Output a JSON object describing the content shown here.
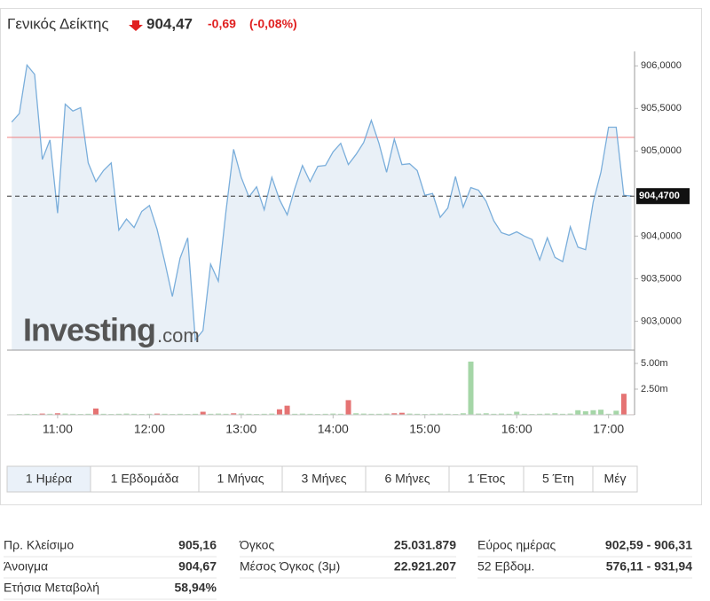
{
  "header": {
    "title": "Γενικός Δείκτης",
    "price": "904,47",
    "change": "-0,69",
    "change_pct": "(-0,08%)"
  },
  "watermark": [
    "Investing",
    ".com"
  ],
  "chart_data": [
    {
      "type": "line",
      "color": "#7aaedb",
      "fill": "#e9f0f7",
      "x": [
        630,
        635,
        640,
        645,
        650,
        655,
        660,
        665,
        670,
        675,
        680,
        685,
        690,
        695,
        700,
        705,
        710,
        715,
        720,
        725,
        730,
        735,
        740,
        745,
        750,
        755,
        760,
        765,
        770,
        775,
        780,
        785,
        790,
        795,
        800,
        805,
        810,
        815,
        820,
        825,
        830,
        835,
        840,
        845,
        850,
        855,
        860,
        865,
        870,
        875,
        880,
        885,
        890,
        895,
        900,
        905,
        910,
        915,
        920,
        925,
        930,
        935,
        940,
        945,
        950,
        955,
        960,
        965,
        970,
        975,
        980,
        985,
        990,
        995,
        1000,
        1005,
        1010,
        1015,
        1020,
        1025,
        1030,
        1035
      ],
      "values": [
        905.34,
        905.44,
        906.01,
        905.9,
        904.9,
        905.13,
        904.27,
        905.55,
        905.47,
        905.51,
        904.86,
        904.64,
        904.77,
        904.86,
        904.07,
        904.2,
        904.1,
        904.29,
        904.36,
        904.08,
        903.7,
        903.29,
        903.74,
        903.98,
        902.78,
        902.89,
        903.67,
        903.47,
        904.29,
        905.02,
        904.69,
        904.46,
        904.58,
        904.31,
        904.69,
        904.43,
        904.25,
        904.56,
        904.83,
        904.64,
        904.82,
        904.83,
        904.99,
        905.09,
        904.84,
        904.96,
        905.1,
        905.36,
        905.09,
        904.75,
        905.14,
        904.84,
        904.85,
        904.77,
        904.48,
        904.5,
        904.22,
        904.33,
        904.7,
        904.34,
        904.57,
        904.54,
        904.41,
        904.18,
        904.04,
        904.01,
        904.05,
        904.0,
        903.96,
        903.72,
        903.98,
        903.75,
        903.7,
        904.11,
        903.87,
        903.84,
        904.4,
        904.75,
        905.28,
        905.28,
        904.48,
        904.47
      ],
      "xlim": [
        627,
        1037
      ],
      "ylim": [
        902.66,
        906.17
      ],
      "yticks": [
        {
          "value": 903,
          "label": "903,0000"
        },
        {
          "value": 903.5,
          "label": "903,5000"
        },
        {
          "value": 904,
          "label": "904,0000"
        },
        {
          "value": 905,
          "label": "905,0000"
        },
        {
          "value": 905.5,
          "label": "905,5000"
        },
        {
          "value": 906,
          "label": "906,0000"
        }
      ],
      "previous_close": 905.16,
      "previous_close_color": "#f08080",
      "last_price": {
        "value": 904.47,
        "label": "904,4700"
      }
    },
    {
      "type": "bar",
      "x": [
        630,
        635,
        640,
        645,
        650,
        655,
        660,
        665,
        670,
        675,
        680,
        685,
        690,
        695,
        700,
        705,
        710,
        715,
        720,
        725,
        730,
        735,
        740,
        745,
        750,
        755,
        760,
        765,
        770,
        775,
        780,
        785,
        790,
        795,
        800,
        805,
        810,
        815,
        820,
        825,
        830,
        835,
        840,
        845,
        850,
        855,
        860,
        865,
        870,
        875,
        880,
        885,
        890,
        895,
        900,
        905,
        910,
        915,
        920,
        925,
        930,
        935,
        940,
        945,
        950,
        955,
        960,
        965,
        970,
        975,
        980,
        985,
        990,
        995,
        1000,
        1005,
        1010,
        1015,
        1020,
        1025,
        1030,
        1035
      ],
      "values": [
        0.05,
        0.08,
        0.1,
        0.08,
        0.12,
        0.1,
        0.15,
        0.12,
        0.1,
        0.08,
        0.1,
        0.62,
        0.1,
        0.08,
        0.1,
        0.12,
        0.1,
        0.08,
        0.1,
        0.12,
        0.1,
        0.08,
        0.1,
        0.08,
        0.1,
        0.3,
        0.1,
        0.12,
        0.1,
        0.15,
        0.12,
        0.1,
        0.08,
        0.1,
        0.12,
        0.54,
        0.89,
        0.1,
        0.12,
        0.1,
        0.08,
        0.1,
        0.12,
        0.1,
        1.43,
        0.15,
        0.12,
        0.1,
        0.1,
        0.12,
        0.15,
        0.2,
        0.12,
        0.1,
        0.08,
        0.1,
        0.12,
        0.1,
        0.08,
        0.15,
        5.18,
        0.12,
        0.15,
        0.1,
        0.12,
        0.1,
        0.3,
        0.1,
        0.08,
        0.1,
        0.12,
        0.15,
        0.1,
        0.12,
        0.45,
        0.35,
        0.45,
        0.5,
        0.1,
        0.4,
        2.05,
        0.05
      ],
      "colors": [
        "#a5d6a7",
        "#a5d6a7",
        "#a5d6a7",
        "#a5d6a7",
        "#e57373",
        "#a5d6a7",
        "#e57373",
        "#a5d6a7",
        "#a5d6a7",
        "#a5d6a7",
        "#a5d6a7",
        "#e57373",
        "#a5d6a7",
        "#a5d6a7",
        "#a5d6a7",
        "#a5d6a7",
        "#a5d6a7",
        "#a5d6a7",
        "#a5d6a7",
        "#e57373",
        "#a5d6a7",
        "#a5d6a7",
        "#a5d6a7",
        "#a5d6a7",
        "#a5d6a7",
        "#e57373",
        "#a5d6a7",
        "#a5d6a7",
        "#a5d6a7",
        "#e57373",
        "#a5d6a7",
        "#a5d6a7",
        "#a5d6a7",
        "#a5d6a7",
        "#a5d6a7",
        "#e57373",
        "#e57373",
        "#a5d6a7",
        "#a5d6a7",
        "#a5d6a7",
        "#a5d6a7",
        "#a5d6a7",
        "#a5d6a7",
        "#a5d6a7",
        "#e57373",
        "#a5d6a7",
        "#a5d6a7",
        "#a5d6a7",
        "#a5d6a7",
        "#a5d6a7",
        "#e57373",
        "#e57373",
        "#a5d6a7",
        "#a5d6a7",
        "#a5d6a7",
        "#a5d6a7",
        "#a5d6a7",
        "#a5d6a7",
        "#a5d6a7",
        "#a5d6a7",
        "#a5d6a7",
        "#a5d6a7",
        "#a5d6a7",
        "#a5d6a7",
        "#a5d6a7",
        "#a5d6a7",
        "#a5d6a7",
        "#a5d6a7",
        "#a5d6a7",
        "#a5d6a7",
        "#a5d6a7",
        "#a5d6a7",
        "#a5d6a7",
        "#a5d6a7",
        "#a5d6a7",
        "#a5d6a7",
        "#a5d6a7",
        "#a5d6a7",
        "#a5d6a7",
        "#a5d6a7",
        "#e57373",
        "#e57373"
      ],
      "xlim": [
        627,
        1037
      ],
      "ylim": [
        0,
        5.86
      ],
      "xticks": [
        {
          "value": 660,
          "label": "11:00"
        },
        {
          "value": 720,
          "label": "12:00"
        },
        {
          "value": 780,
          "label": "13:00"
        },
        {
          "value": 840,
          "label": "14:00"
        },
        {
          "value": 900,
          "label": "15:00"
        },
        {
          "value": 960,
          "label": "16:00"
        },
        {
          "value": 1020,
          "label": "17:00"
        }
      ],
      "yticks": [
        {
          "value": 2.5,
          "label": "2.50m"
        },
        {
          "value": 5,
          "label": "5.00m"
        }
      ]
    }
  ],
  "ranges": {
    "items": [
      "1 Ημέρα",
      "1 Εβδομάδα",
      "1 Μήνας",
      "3 Μήνες",
      "6 Μήνες",
      "1 Έτος",
      "5 Έτη",
      "Μέγ"
    ],
    "active": 0
  },
  "stats": [
    [
      [
        "Πρ. Κλείσιμο",
        "905,16"
      ],
      [
        "Άνοιγμα",
        "904,67"
      ],
      [
        "Ετήσια Μεταβολή",
        "58,94%"
      ]
    ],
    [
      [
        "Όγκος",
        "25.031.879"
      ],
      [
        "Μέσος Όγκος (3μ)",
        "22.921.207"
      ]
    ],
    [
      [
        "Εύρος ημέρας",
        "902,59 - 906,31"
      ],
      [
        "52 Εβδομ.",
        "576,11 - 931,94"
      ]
    ]
  ]
}
